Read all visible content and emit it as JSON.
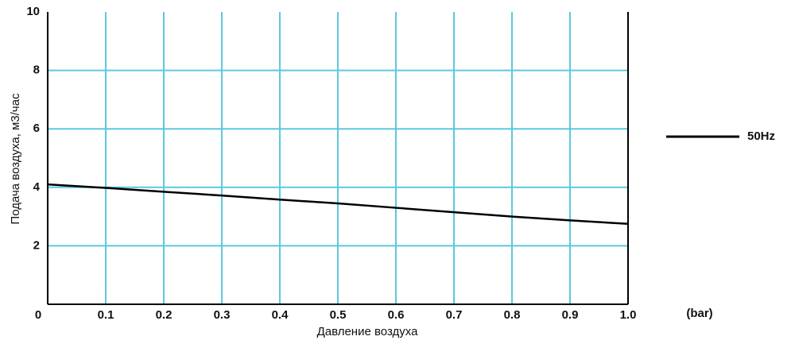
{
  "chart_data": {
    "type": "line",
    "x_label": "Давление воздуха",
    "x_unit": "(bar)",
    "y_label": "Подача воздуха, м3/час",
    "x": [
      0,
      0.1,
      0.2,
      0.3,
      0.4,
      0.5,
      0.6,
      0.7,
      0.8,
      0.9,
      1
    ],
    "series": [
      {
        "name": "50Hz",
        "color": "#000000",
        "values": [
          4.1,
          3.98,
          3.85,
          3.72,
          3.58,
          3.45,
          3.3,
          3.15,
          3.0,
          2.87,
          2.75
        ]
      }
    ],
    "xlim": [
      0,
      1
    ],
    "ylim": [
      0,
      10
    ],
    "xticks": [
      0,
      0.1,
      0.2,
      0.3,
      0.4,
      0.5,
      0.6,
      0.7,
      0.8,
      0.9,
      {
        "value": 1,
        "label": "1.0"
      }
    ],
    "yticks": [
      2,
      4,
      6,
      8,
      10
    ],
    "grid": true,
    "grid_color": "#5cc8e0",
    "legend": "right"
  }
}
